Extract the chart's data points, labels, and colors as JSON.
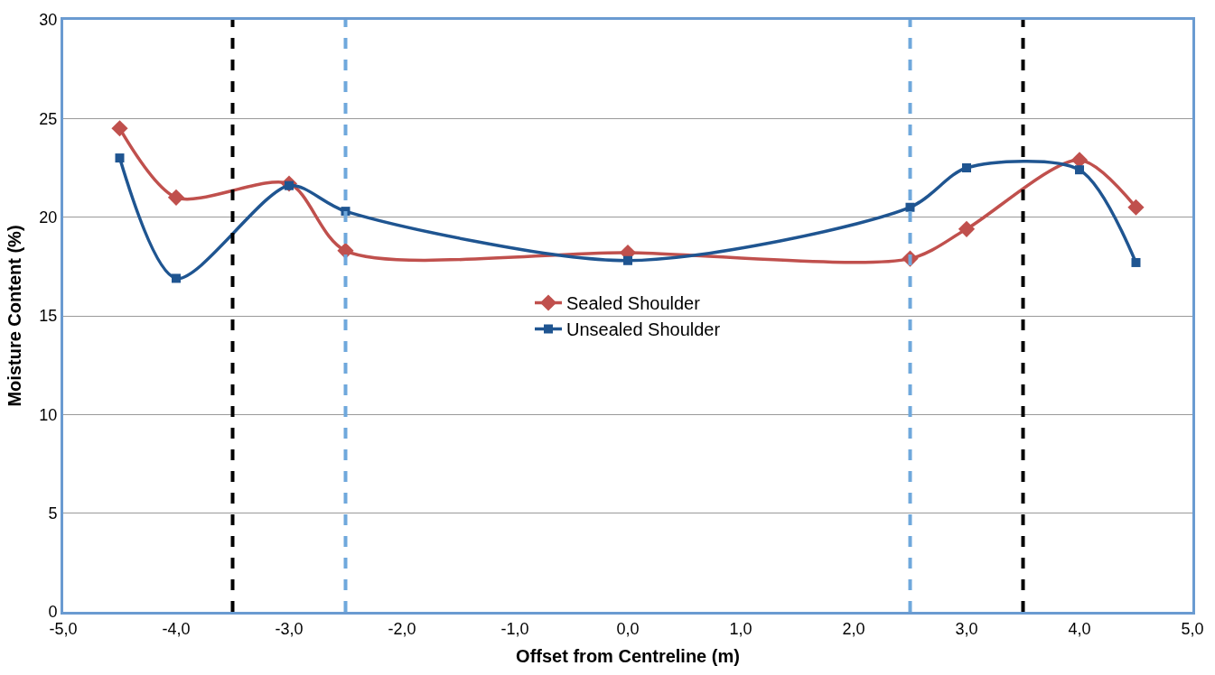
{
  "chart_data": {
    "type": "line",
    "xlabel": "Offset from Centreline (m)",
    "ylabel": "Moisture Content (%)",
    "x": [
      -4.5,
      -4.0,
      -3.0,
      -2.5,
      0.0,
      2.5,
      3.0,
      4.0,
      4.5
    ],
    "series": [
      {
        "name": "Sealed Shoulder",
        "color": "#c0504d",
        "marker": "diamond",
        "values": [
          24.5,
          21.0,
          21.7,
          18.3,
          18.2,
          17.9,
          19.4,
          22.9,
          20.5
        ]
      },
      {
        "name": "Unsealed Shoulder",
        "color": "#1f5591",
        "marker": "square",
        "values": [
          23.0,
          16.9,
          21.6,
          20.3,
          17.8,
          20.5,
          22.5,
          22.4,
          17.7
        ]
      }
    ],
    "xlim": [
      -5,
      5
    ],
    "xticks": [
      {
        "value": -5,
        "label": "-5,0"
      },
      {
        "value": -4,
        "label": "-4,0"
      },
      {
        "value": -3,
        "label": "-3,0"
      },
      {
        "value": -2,
        "label": "-2,0"
      },
      {
        "value": -1,
        "label": "-1,0"
      },
      {
        "value": 0,
        "label": "0,0"
      },
      {
        "value": 1,
        "label": "1,0"
      },
      {
        "value": 2,
        "label": "2,0"
      },
      {
        "value": 3,
        "label": "3,0"
      },
      {
        "value": 4,
        "label": "4,0"
      },
      {
        "value": 5,
        "label": "5,0"
      }
    ],
    "ylim": [
      0,
      30
    ],
    "yticks": [
      0,
      5,
      10,
      15,
      20,
      25,
      30
    ],
    "grid": "y",
    "legend": "center",
    "ref_lines": [
      {
        "axis": "x",
        "value": -3.5,
        "color": "#000000",
        "line_style": "dashed"
      },
      {
        "axis": "x",
        "value": -2.5,
        "color": "#6fa8dc",
        "line_style": "dashed"
      },
      {
        "axis": "x",
        "value": 2.5,
        "color": "#6fa8dc",
        "line_style": "dashed"
      },
      {
        "axis": "x",
        "value": 3.5,
        "color": "#000000",
        "line_style": "dashed"
      }
    ]
  }
}
